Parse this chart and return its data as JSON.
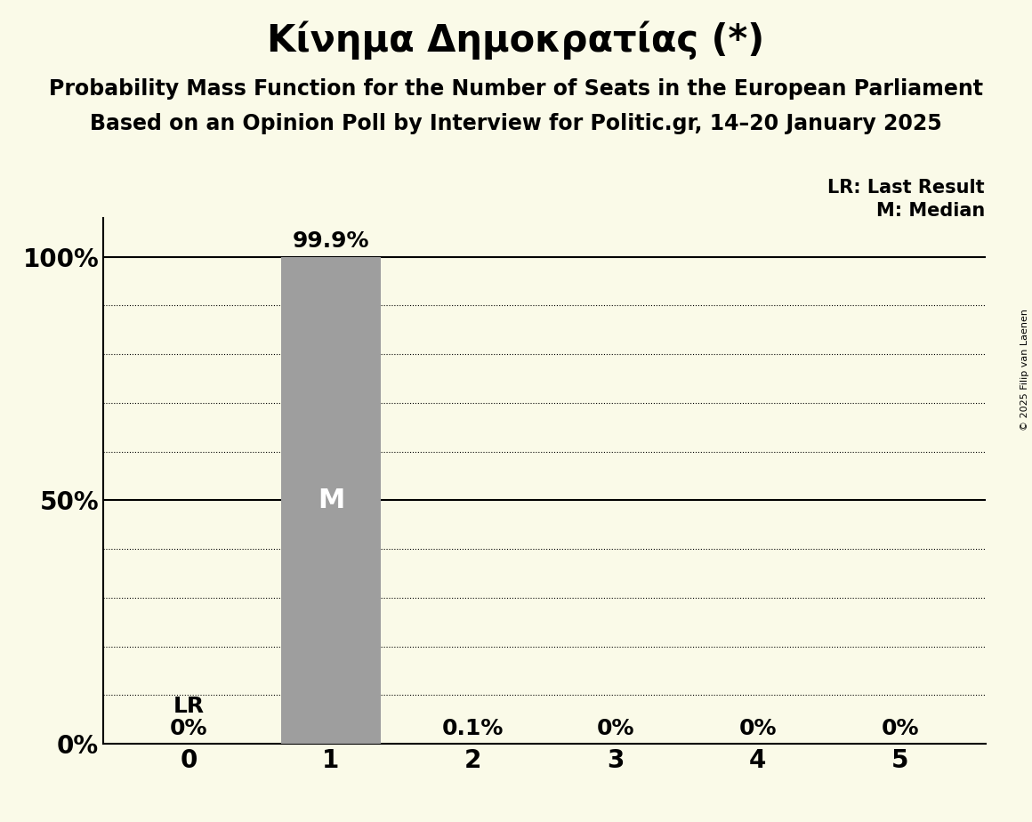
{
  "title": "Κίνημα Δημοκρατίας (*)",
  "subtitle1": "Probability Mass Function for the Number of Seats in the European Parliament",
  "subtitle2": "Based on an Opinion Poll by Interview for Politic.gr, 14–20 January 2025",
  "copyright": "© 2025 Filip van Laenen",
  "legend_lr": "LR: Last Result",
  "legend_m": "M: Median",
  "categories": [
    0,
    1,
    2,
    3,
    4,
    5
  ],
  "values": [
    0.0,
    0.999,
    0.001,
    0.0,
    0.0,
    0.0
  ],
  "bar_color": "#9e9e9e",
  "background_color": "#fafae8",
  "median_seat": 1,
  "lr_seat": 0,
  "prob_labels": [
    "0%",
    "99.9%",
    "0.1%",
    "0%",
    "0%",
    "0%"
  ],
  "lr_label": "LR",
  "median_label": "M",
  "ylim": [
    0,
    1.08
  ],
  "yticks": [
    0.0,
    0.25,
    0.5,
    0.75,
    1.0
  ],
  "ytick_labels": [
    "0%",
    "",
    "50%",
    "",
    "100%"
  ],
  "title_fontsize": 30,
  "subtitle_fontsize": 17,
  "axis_fontsize": 20,
  "bar_label_fontsize": 18,
  "legend_fontsize": 15,
  "copyright_fontsize": 8
}
